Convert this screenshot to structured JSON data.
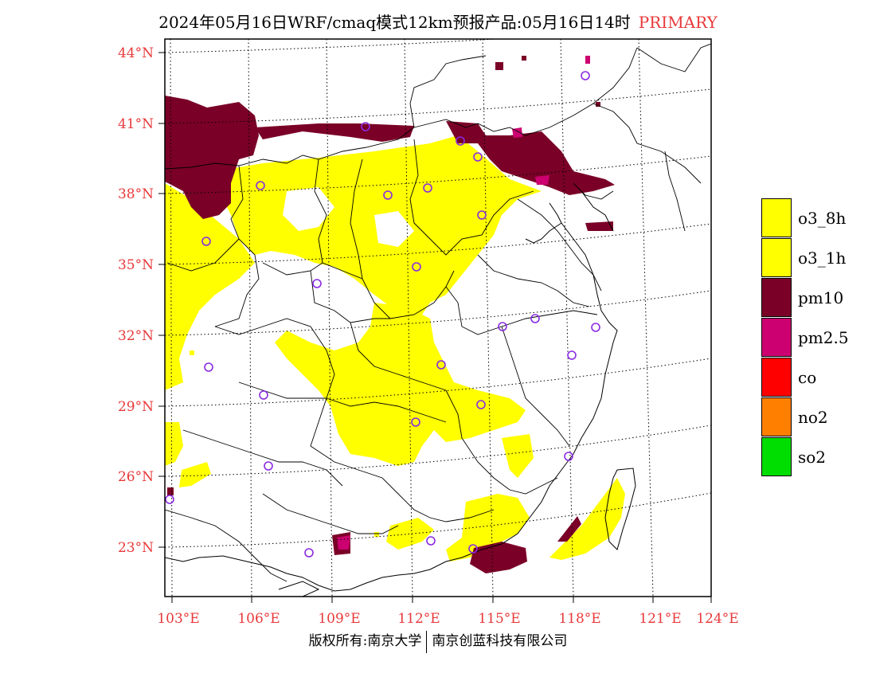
{
  "title": {
    "main": "2024年05月16日WRF/cmaq模式12km预报产品:05月16日14时",
    "tag": "PRIMARY"
  },
  "map": {
    "lat_labels": [
      "44°N",
      "41°N",
      "38°N",
      "35°N",
      "32°N",
      "29°N",
      "26°N",
      "23°N"
    ],
    "lon_labels": [
      "103°E",
      "106°E",
      "109°E",
      "112°E",
      "115°E",
      "118°E",
      "121°E",
      "124°E"
    ],
    "label_color": "#e8393a",
    "station_marker_color": "#8a2be2",
    "extent": {
      "lon": [
        102.7,
        124
      ],
      "lat": [
        21.2,
        44.5
      ]
    },
    "pollutant_areas": [
      {
        "pollutant": "pm10",
        "region": "northwest (Inner Mongolia / Ningxia)"
      },
      {
        "pollutant": "pm10",
        "region": "Bohai rim / Hebei"
      },
      {
        "pollutant": "pm10",
        "region": "Pearl River estuary"
      },
      {
        "pollutant": "o3_8h",
        "region": "North China Plain / Shanxi / Shaanxi"
      },
      {
        "pollutant": "o3_8h",
        "region": "Central China (Hubei / Hunan / Jiangxi)"
      },
      {
        "pollutant": "o3_8h",
        "region": "Guangdong / Taiwan Strait"
      }
    ]
  },
  "legend": [
    {
      "label": "o3_8h",
      "color": "#ffff00"
    },
    {
      "label": "o3_1h",
      "color": "#ffff00"
    },
    {
      "label": "pm10",
      "color": "#7a0027"
    },
    {
      "label": "pm2.5",
      "color": "#cc0070"
    },
    {
      "label": "co",
      "color": "#ff0000"
    },
    {
      "label": "no2",
      "color": "#ff8000"
    },
    {
      "label": "so2",
      "color": "#00dd00"
    }
  ],
  "footer": {
    "left": "版权所有:南京大学",
    "right": "南京创蓝科技有限公司"
  }
}
